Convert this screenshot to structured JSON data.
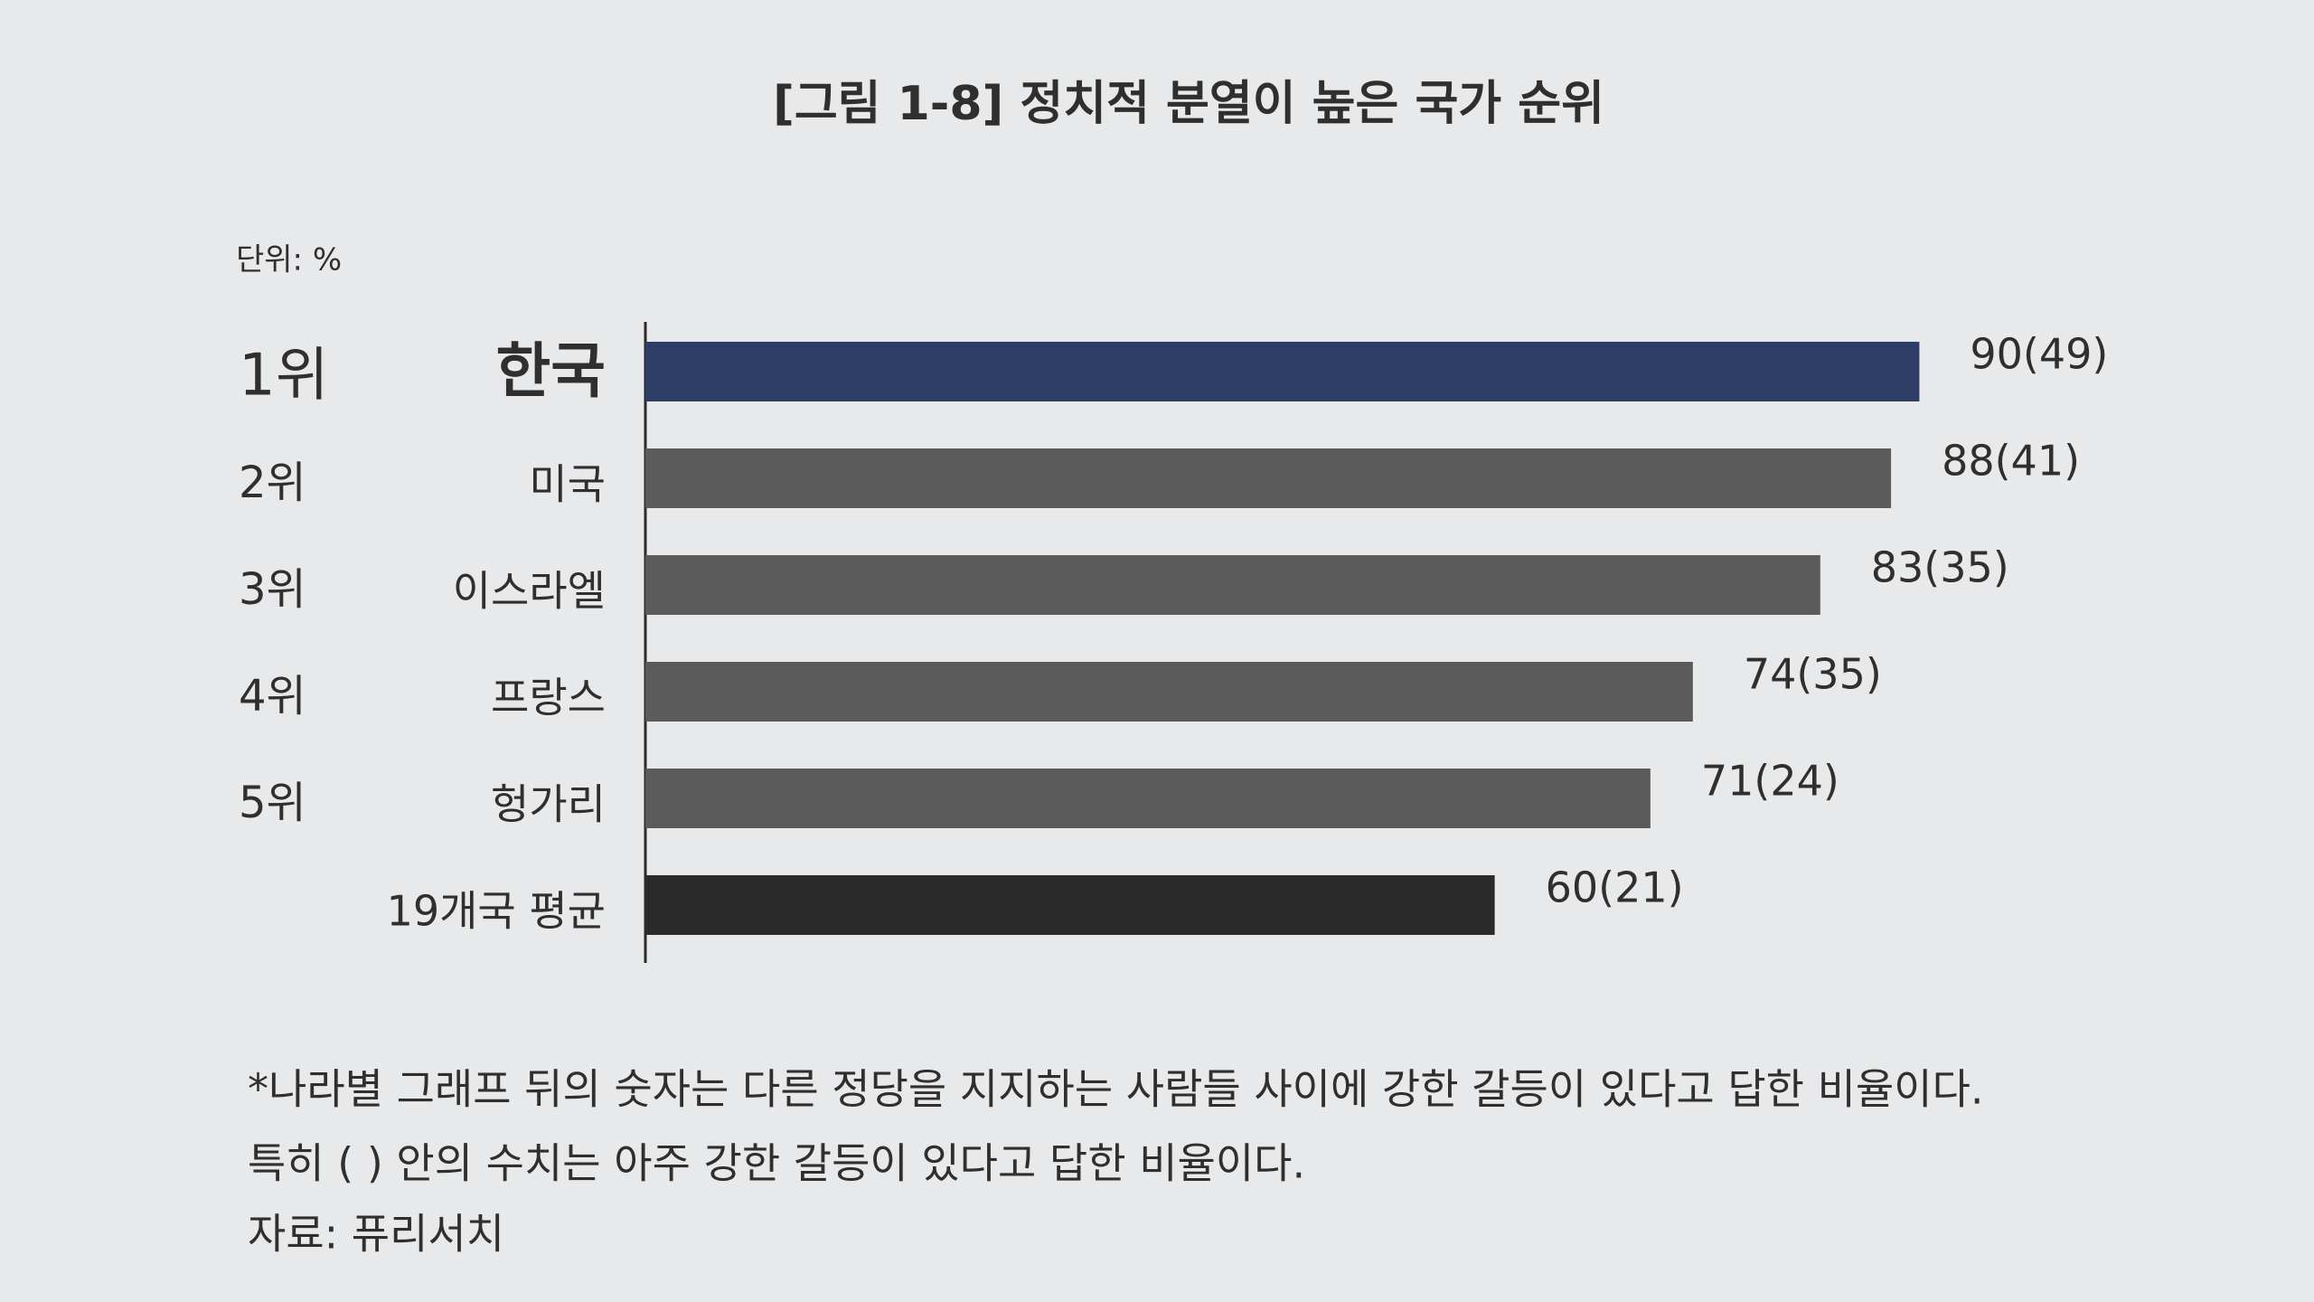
{
  "chart_data": {
    "type": "bar",
    "orientation": "horizontal",
    "title": "[그림 1-8] 정치적 분열이 높은 국가 순위",
    "unit": "단위: %",
    "ranks": [
      "1위",
      "2위",
      "3위",
      "4위",
      "5위",
      null
    ],
    "categories": [
      "한국",
      "미국",
      "이스라엘",
      "프랑스",
      "헝가리",
      "19개국 평균"
    ],
    "values": [
      90,
      88,
      83,
      74,
      71,
      60
    ],
    "value_labels": [
      "90(49)",
      "88(41)",
      "83(35)",
      "74(35)",
      "71(24)",
      "60(21)"
    ],
    "colors": [
      "#2e3d66",
      "#5b5b5b",
      "#5b5b5b",
      "#5b5b5b",
      "#5b5b5b",
      "#2b2b2b"
    ],
    "xlim": [
      0,
      100
    ],
    "notes": [
      "*나라별 그래프 뒤의 숫자는 다른 정당을 지지하는 사람들 사이에 강한 갈등이 있다고 답한 비율이다.",
      "특히 ( ) 안의 수치는 아주 강한 갈등이 있다고 답한 비율이다."
    ],
    "source": "자료: 퓨리서치"
  }
}
